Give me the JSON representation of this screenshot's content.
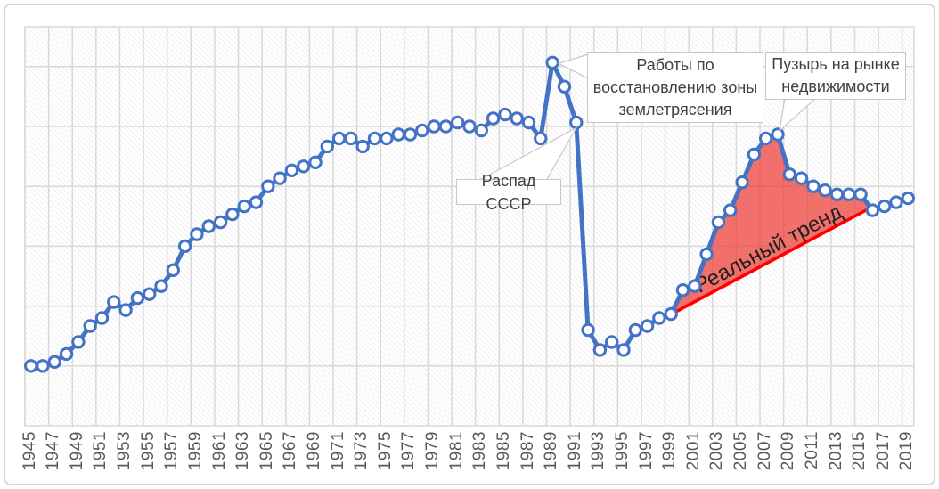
{
  "figure": {
    "title": "",
    "background": "#FFFFFF",
    "border_color": "#D7D7D7"
  },
  "chart_data": {
    "type": "line",
    "title": "",
    "xlabel": "",
    "ylabel": "",
    "y_axis_labels_visible": false,
    "ylim": [
      0,
      100
    ],
    "y_gridline_step": 15,
    "x": [
      1945,
      1946,
      1947,
      1948,
      1949,
      1950,
      1951,
      1952,
      1953,
      1954,
      1955,
      1956,
      1957,
      1958,
      1959,
      1960,
      1961,
      1962,
      1963,
      1964,
      1965,
      1966,
      1967,
      1968,
      1969,
      1970,
      1971,
      1972,
      1973,
      1974,
      1975,
      1976,
      1977,
      1978,
      1979,
      1980,
      1981,
      1982,
      1983,
      1984,
      1985,
      1986,
      1987,
      1988,
      1989,
      1990,
      1991,
      1992,
      1993,
      1994,
      1995,
      1996,
      1997,
      1998,
      1999,
      2000,
      2001,
      2002,
      2003,
      2004,
      2005,
      2006,
      2007,
      2008,
      2009,
      2010,
      2011,
      2012,
      2013,
      2014,
      2015,
      2016,
      2017,
      2018,
      2019
    ],
    "values": [
      15,
      15,
      16,
      18,
      21,
      25,
      27,
      31,
      29,
      32,
      33,
      35,
      39,
      45,
      48,
      50,
      51,
      53,
      55,
      56,
      60,
      62,
      64,
      65,
      66,
      70,
      72,
      72,
      70,
      72,
      72,
      73,
      73,
      74,
      75,
      75,
      76,
      75,
      74,
      77,
      78,
      77,
      76,
      72,
      91,
      85,
      76,
      24,
      19,
      21,
      19,
      24,
      25,
      27,
      28,
      34,
      35,
      43,
      51,
      54,
      61,
      68,
      72,
      73,
      63,
      62,
      60,
      59,
      58,
      58,
      58,
      54,
      55,
      56,
      57
    ],
    "x_tick_labels": [
      "1945",
      "1947",
      "1949",
      "1951",
      "1953",
      "1955",
      "1957",
      "1959",
      "1961",
      "1963",
      "1965",
      "1967",
      "1969",
      "1971",
      "1973",
      "1975",
      "1977",
      "1979",
      "1981",
      "1983",
      "1985",
      "1987",
      "1989",
      "1991",
      "1993",
      "1995",
      "1997",
      "1999",
      "2001",
      "2003",
      "2005",
      "2007",
      "2009",
      "2011",
      "2013",
      "2015",
      "2017",
      "2019"
    ],
    "grid": "both",
    "legend": "none",
    "plot_background_pattern": "light-diagonal-hatch",
    "series": {
      "name": "",
      "marker": "circle-white",
      "color": "#4472C4"
    },
    "callouts": {
      "earthquake": {
        "lines": [
          "Работы по",
          "восстановлению зоны",
          "землетрясения"
        ],
        "target_year": 1989
      },
      "ussr": {
        "lines": [
          "Распад СССР"
        ],
        "target_year": 1991
      },
      "bubble": {
        "lines": [
          "Пузырь на рынке",
          "недвижимости"
        ],
        "target_year": 2008
      }
    },
    "trend": {
      "label": "Реальный тренд",
      "color": "#FF0000",
      "area_fill": "#EE3A34",
      "area_opacity": 0.72,
      "start_year": 1999.3,
      "start_value": 28.4,
      "end_year": 2015.75,
      "end_value": 54.5,
      "area_over_years": [
        2000,
        2015
      ]
    },
    "colors": {
      "series_line": "#4472C4",
      "trend_line": "#FF0000",
      "bubble_area": "#EE3A34",
      "gridline": "#D9D9D9",
      "hatch": "#E6E6E6",
      "axis_label_text": "#595959",
      "callout_text": "#404040",
      "callout_border": "#C7C7C7",
      "trend_label_text": "#1F1F1F"
    }
  }
}
